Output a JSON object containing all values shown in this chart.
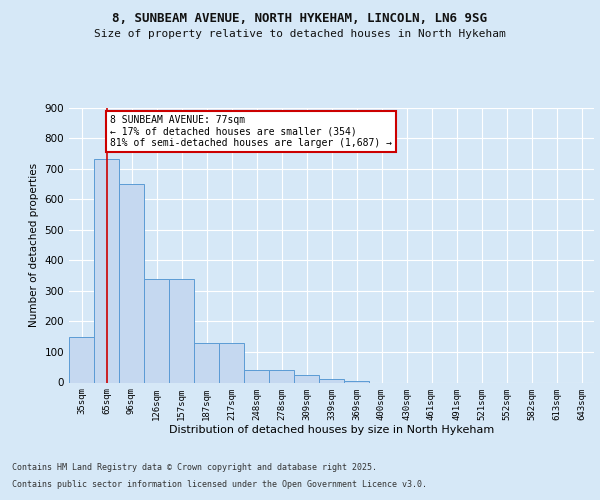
{
  "title1": "8, SUNBEAM AVENUE, NORTH HYKEHAM, LINCOLN, LN6 9SG",
  "title2": "Size of property relative to detached houses in North Hykeham",
  "xlabel": "Distribution of detached houses by size in North Hykeham",
  "ylabel": "Number of detached properties",
  "categories": [
    "35sqm",
    "65sqm",
    "96sqm",
    "126sqm",
    "157sqm",
    "187sqm",
    "217sqm",
    "248sqm",
    "278sqm",
    "309sqm",
    "339sqm",
    "369sqm",
    "400sqm",
    "430sqm",
    "461sqm",
    "491sqm",
    "521sqm",
    "552sqm",
    "582sqm",
    "613sqm",
    "643sqm"
  ],
  "values": [
    150,
    730,
    650,
    340,
    340,
    130,
    130,
    40,
    40,
    25,
    10,
    5,
    0,
    0,
    0,
    0,
    0,
    0,
    0,
    0,
    0
  ],
  "bar_color": "#c5d8f0",
  "bar_edge_color": "#5b9bd5",
  "bg_color": "#d6e8f7",
  "plot_bg": "#d6e8f7",
  "grid_color": "#ffffff",
  "vline_x": 1,
  "vline_color": "#cc0000",
  "annotation_text": "8 SUNBEAM AVENUE: 77sqm\n← 17% of detached houses are smaller (354)\n81% of semi-detached houses are larger (1,687) →",
  "annotation_box_color": "#ffffff",
  "annotation_box_edge": "#cc0000",
  "footer1": "Contains HM Land Registry data © Crown copyright and database right 2025.",
  "footer2": "Contains public sector information licensed under the Open Government Licence v3.0.",
  "ylim": [
    0,
    900
  ],
  "yticks": [
    0,
    100,
    200,
    300,
    400,
    500,
    600,
    700,
    800,
    900
  ]
}
